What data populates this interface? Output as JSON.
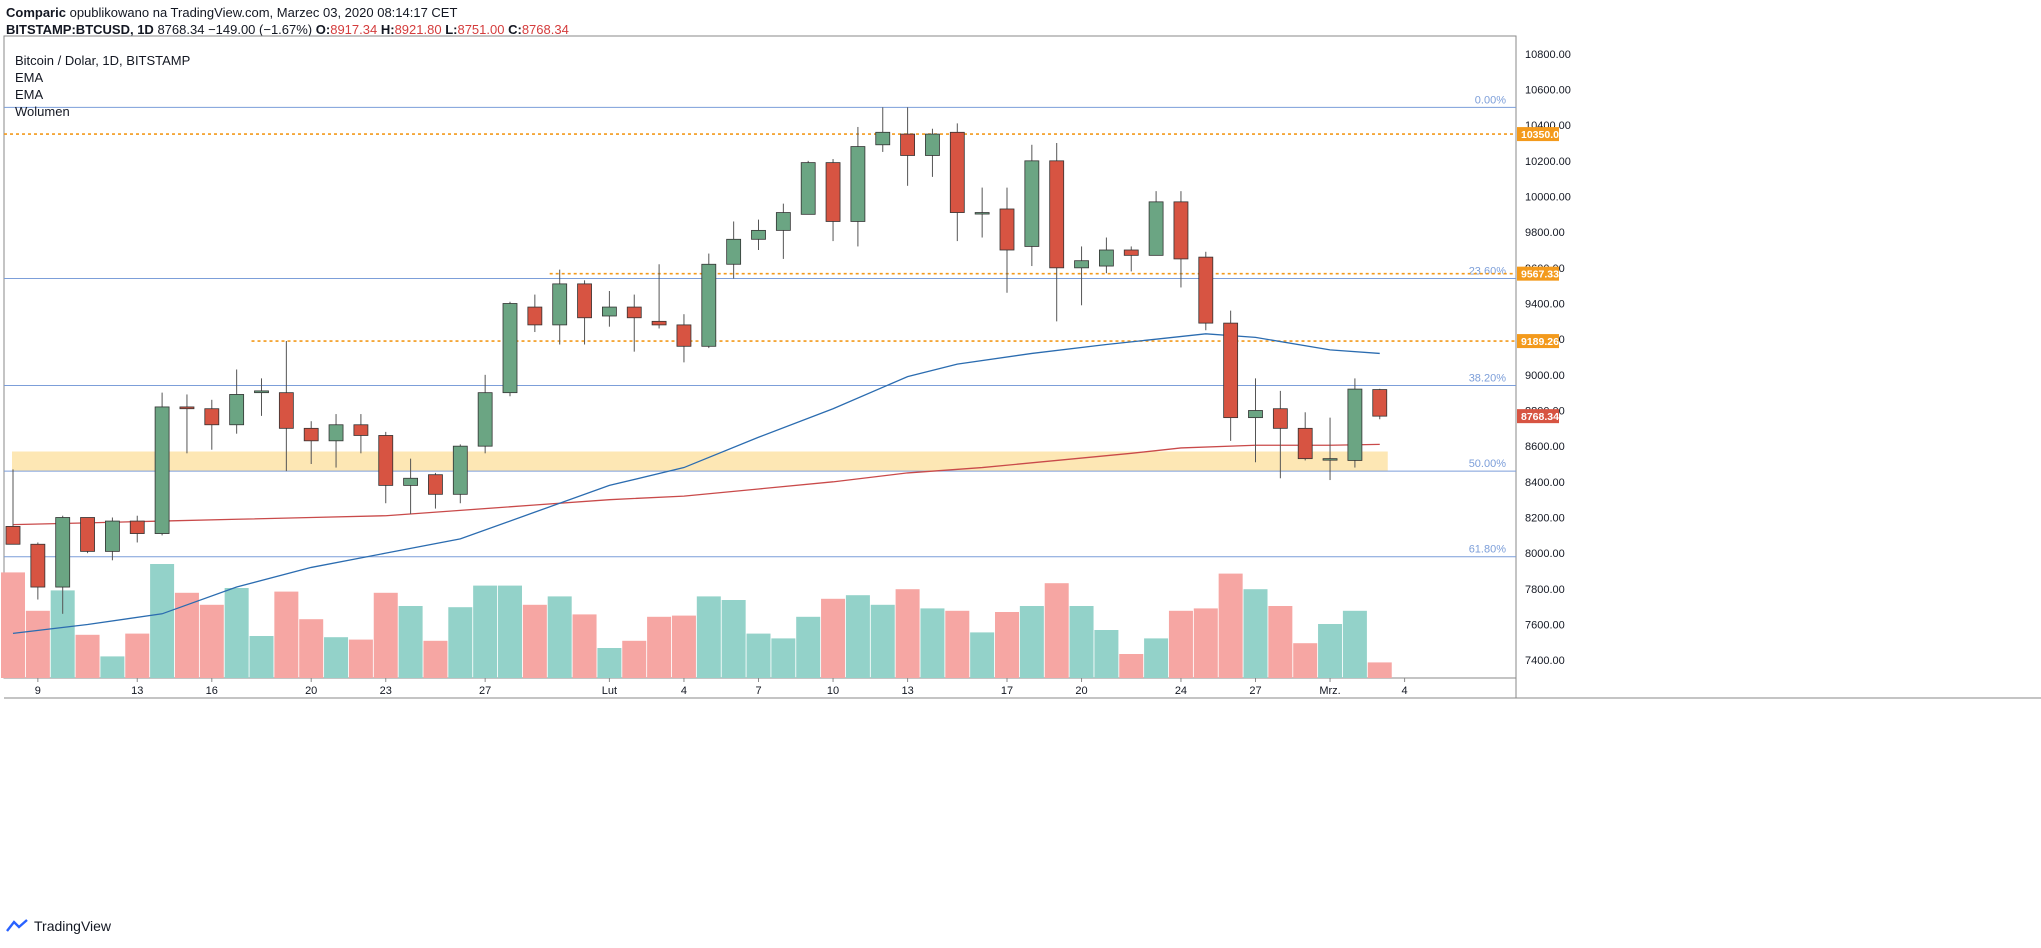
{
  "header": {
    "line1_author": "Comparic",
    "line1_rest": "opublikowano na TradingView.com, Marzec 03, 2020 08:14:17 CET",
    "symbol": "BITSTAMP:BTCUSD, 1D",
    "price": "8768.34",
    "change": "−149.00 (−1.67%)",
    "o_label": "O:",
    "o_value": "8917.34",
    "h_label": "H:",
    "h_value": "8921.80",
    "l_label": "L:",
    "l_value": "8751.00",
    "c_label": "C:",
    "c_value": "8768.34"
  },
  "legend": {
    "title": "Bitcoin / Dolar, 1D, BITSTAMP",
    "ema1": "EMA",
    "ema2": "EMA",
    "volume": "Wolumen"
  },
  "footer": {
    "brand": "TradingView"
  },
  "chart_data": {
    "type": "candlestick",
    "colors": {
      "up": "#6ba583",
      "down": "#d75442",
      "wick": "#555555",
      "vol_up": "#93d2c9",
      "vol_down": "#f6a6a3",
      "ema_fast": "#2b6cb0",
      "ema_slow": "#c94a4a",
      "fib": "#7c9ed9",
      "level": "#f39a1c",
      "zone": "#fde7b4"
    },
    "ylim": [
      7300,
      10900
    ],
    "yticks": [
      7400,
      7600,
      7800,
      8000,
      8200,
      8400,
      8600,
      8800,
      9000,
      9200,
      9400,
      9600,
      9800,
      10000,
      10200,
      10400,
      10600,
      10800
    ],
    "x_labels": [
      {
        "i": 1,
        "label": "9"
      },
      {
        "i": 5,
        "label": "13"
      },
      {
        "i": 8,
        "label": "16"
      },
      {
        "i": 12,
        "label": "20"
      },
      {
        "i": 15,
        "label": "23"
      },
      {
        "i": 19,
        "label": "27"
      },
      {
        "i": 24,
        "label": "Lut"
      },
      {
        "i": 27,
        "label": "4"
      },
      {
        "i": 30,
        "label": "7"
      },
      {
        "i": 33,
        "label": "10"
      },
      {
        "i": 36,
        "label": "13"
      },
      {
        "i": 40,
        "label": "17"
      },
      {
        "i": 43,
        "label": "20"
      },
      {
        "i": 47,
        "label": "24"
      },
      {
        "i": 50,
        "label": "27"
      },
      {
        "i": 53,
        "label": "Mrz."
      },
      {
        "i": 56,
        "label": "4"
      }
    ],
    "candles": [
      {
        "o": 8150,
        "h": 8470,
        "l": 8050,
        "c": 8050,
        "v": 0.88
      },
      {
        "o": 8050,
        "h": 8060,
        "l": 7740,
        "c": 7810,
        "v": 0.56
      },
      {
        "o": 7810,
        "h": 8210,
        "l": 7660,
        "c": 8200,
        "v": 0.73
      },
      {
        "o": 8200,
        "h": 8200,
        "l": 8000,
        "c": 8010,
        "v": 0.36
      },
      {
        "o": 8010,
        "h": 8200,
        "l": 7960,
        "c": 8180,
        "v": 0.18
      },
      {
        "o": 8180,
        "h": 8210,
        "l": 8060,
        "c": 8110,
        "v": 0.37
      },
      {
        "o": 8110,
        "h": 8900,
        "l": 8100,
        "c": 8820,
        "v": 0.95
      },
      {
        "o": 8820,
        "h": 8890,
        "l": 8560,
        "c": 8810,
        "v": 0.71
      },
      {
        "o": 8810,
        "h": 8860,
        "l": 8580,
        "c": 8720,
        "v": 0.61
      },
      {
        "o": 8720,
        "h": 9030,
        "l": 8670,
        "c": 8890,
        "v": 0.75
      },
      {
        "o": 8900,
        "h": 8980,
        "l": 8770,
        "c": 8910,
        "v": 0.35
      },
      {
        "o": 8900,
        "h": 9190,
        "l": 8460,
        "c": 8700,
        "v": 0.72
      },
      {
        "o": 8700,
        "h": 8740,
        "l": 8500,
        "c": 8630,
        "v": 0.49
      },
      {
        "o": 8630,
        "h": 8780,
        "l": 8480,
        "c": 8720,
        "v": 0.34
      },
      {
        "o": 8720,
        "h": 8780,
        "l": 8560,
        "c": 8660,
        "v": 0.32
      },
      {
        "o": 8660,
        "h": 8680,
        "l": 8280,
        "c": 8380,
        "v": 0.71
      },
      {
        "o": 8380,
        "h": 8530,
        "l": 8220,
        "c": 8420,
        "v": 0.6
      },
      {
        "o": 8440,
        "h": 8450,
        "l": 8250,
        "c": 8330,
        "v": 0.31
      },
      {
        "o": 8330,
        "h": 8610,
        "l": 8280,
        "c": 8600,
        "v": 0.59
      },
      {
        "o": 8600,
        "h": 9000,
        "l": 8560,
        "c": 8900,
        "v": 0.77
      },
      {
        "o": 8900,
        "h": 9410,
        "l": 8880,
        "c": 9400,
        "v": 0.77
      },
      {
        "o": 9380,
        "h": 9450,
        "l": 9240,
        "c": 9280,
        "v": 0.61
      },
      {
        "o": 9280,
        "h": 9590,
        "l": 9170,
        "c": 9510,
        "v": 0.68
      },
      {
        "o": 9510,
        "h": 9530,
        "l": 9170,
        "c": 9320,
        "v": 0.53
      },
      {
        "o": 9330,
        "h": 9470,
        "l": 9270,
        "c": 9380,
        "v": 0.25
      },
      {
        "o": 9380,
        "h": 9450,
        "l": 9130,
        "c": 9320,
        "v": 0.31
      },
      {
        "o": 9300,
        "h": 9620,
        "l": 9260,
        "c": 9280,
        "v": 0.51
      },
      {
        "o": 9280,
        "h": 9340,
        "l": 9070,
        "c": 9160,
        "v": 0.52
      },
      {
        "o": 9160,
        "h": 9680,
        "l": 9150,
        "c": 9620,
        "v": 0.68
      },
      {
        "o": 9620,
        "h": 9860,
        "l": 9540,
        "c": 9760,
        "v": 0.65
      },
      {
        "o": 9760,
        "h": 9870,
        "l": 9700,
        "c": 9810,
        "v": 0.37
      },
      {
        "o": 9810,
        "h": 9960,
        "l": 9650,
        "c": 9910,
        "v": 0.33
      },
      {
        "o": 9900,
        "h": 10200,
        "l": 9900,
        "c": 10190,
        "v": 0.51
      },
      {
        "o": 10190,
        "h": 10210,
        "l": 9750,
        "c": 9860,
        "v": 0.66
      },
      {
        "o": 9860,
        "h": 10390,
        "l": 9720,
        "c": 10280,
        "v": 0.69
      },
      {
        "o": 10290,
        "h": 10500,
        "l": 10250,
        "c": 10360,
        "v": 0.61
      },
      {
        "o": 10350,
        "h": 10500,
        "l": 10060,
        "c": 10230,
        "v": 0.74
      },
      {
        "o": 10230,
        "h": 10380,
        "l": 10110,
        "c": 10350,
        "v": 0.58
      },
      {
        "o": 10360,
        "h": 10410,
        "l": 9750,
        "c": 9910,
        "v": 0.56
      },
      {
        "o": 9910,
        "h": 10050,
        "l": 9770,
        "c": 9910,
        "v": 0.38
      },
      {
        "o": 9930,
        "h": 10050,
        "l": 9460,
        "c": 9700,
        "v": 0.55
      },
      {
        "o": 9720,
        "h": 10290,
        "l": 9610,
        "c": 10200,
        "v": 0.6
      },
      {
        "o": 10200,
        "h": 10300,
        "l": 9300,
        "c": 9600,
        "v": 0.79
      },
      {
        "o": 9600,
        "h": 9720,
        "l": 9390,
        "c": 9640,
        "v": 0.6
      },
      {
        "o": 9610,
        "h": 9770,
        "l": 9570,
        "c": 9700,
        "v": 0.4
      },
      {
        "o": 9700,
        "h": 9720,
        "l": 9580,
        "c": 9670,
        "v": 0.2
      },
      {
        "o": 9670,
        "h": 10030,
        "l": 9670,
        "c": 9970,
        "v": 0.33
      },
      {
        "o": 9970,
        "h": 10030,
        "l": 9490,
        "c": 9650,
        "v": 0.56
      },
      {
        "o": 9660,
        "h": 9690,
        "l": 9250,
        "c": 9290,
        "v": 0.58
      },
      {
        "o": 9290,
        "h": 9360,
        "l": 8630,
        "c": 8760,
        "v": 0.87
      },
      {
        "o": 8760,
        "h": 8980,
        "l": 8510,
        "c": 8800,
        "v": 0.74
      },
      {
        "o": 8810,
        "h": 8910,
        "l": 8420,
        "c": 8700,
        "v": 0.6
      },
      {
        "o": 8700,
        "h": 8790,
        "l": 8520,
        "c": 8530,
        "v": 0.29
      },
      {
        "o": 8530,
        "h": 8760,
        "l": 8410,
        "c": 8530,
        "v": 0.45
      },
      {
        "o": 8520,
        "h": 8980,
        "l": 8480,
        "c": 8920,
        "v": 0.56
      },
      {
        "o": 8917.34,
        "h": 8921.8,
        "l": 8751,
        "c": 8768.34,
        "v": 0.13
      }
    ],
    "ema_fast": [
      [
        0,
        7550
      ],
      [
        3,
        7600
      ],
      [
        6,
        7660
      ],
      [
        9,
        7810
      ],
      [
        12,
        7920
      ],
      [
        15,
        8000
      ],
      [
        18,
        8080
      ],
      [
        21,
        8230
      ],
      [
        24,
        8380
      ],
      [
        27,
        8480
      ],
      [
        30,
        8650
      ],
      [
        33,
        8810
      ],
      [
        36,
        8990
      ],
      [
        38,
        9060
      ],
      [
        41,
        9120
      ],
      [
        44,
        9170
      ],
      [
        46,
        9200
      ],
      [
        48,
        9230
      ],
      [
        50,
        9210
      ],
      [
        53,
        9140
      ],
      [
        55,
        9120
      ]
    ],
    "ema_slow": [
      [
        0,
        8160
      ],
      [
        3,
        8170
      ],
      [
        6,
        8180
      ],
      [
        9,
        8190
      ],
      [
        12,
        8200
      ],
      [
        15,
        8210
      ],
      [
        18,
        8240
      ],
      [
        21,
        8270
      ],
      [
        24,
        8300
      ],
      [
        27,
        8320
      ],
      [
        30,
        8360
      ],
      [
        33,
        8400
      ],
      [
        36,
        8450
      ],
      [
        39,
        8480
      ],
      [
        42,
        8520
      ],
      [
        45,
        8560
      ],
      [
        47,
        8590
      ],
      [
        50,
        8605
      ],
      [
        53,
        8605
      ],
      [
        55,
        8610
      ]
    ],
    "fib_levels": [
      {
        "label": "0.00%",
        "price": 10500
      },
      {
        "label": "23.60%",
        "price": 9540
      },
      {
        "label": "38.20%",
        "price": 8940
      },
      {
        "label": "50.00%",
        "price": 8460
      },
      {
        "label": "61.80%",
        "price": 7980
      }
    ],
    "levels": [
      {
        "label": "10350.00",
        "price": 10350,
        "from": 0
      },
      {
        "label": "9567.33",
        "price": 9567.33,
        "from": 22
      },
      {
        "label": "9189.26",
        "price": 9189.26,
        "from": 10
      }
    ],
    "support_zone": {
      "low": 8460,
      "high": 8570
    },
    "last_price_label": "8768.34"
  }
}
